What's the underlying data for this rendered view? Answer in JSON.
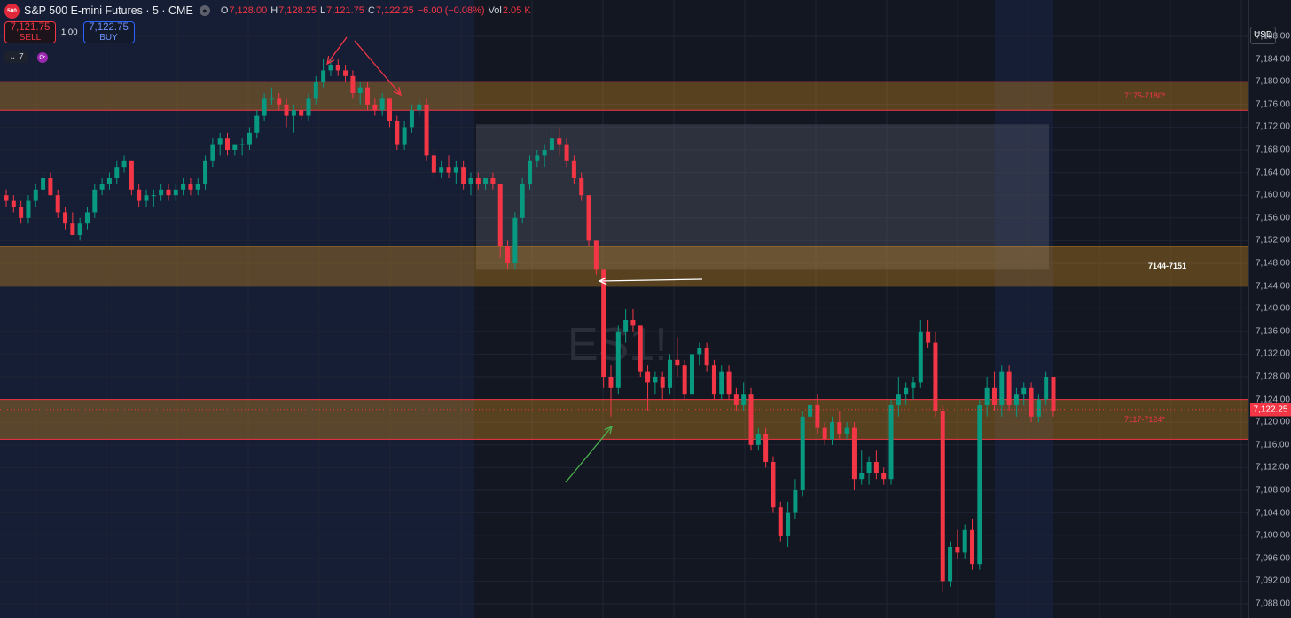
{
  "header": {
    "logo_text": "500",
    "title": "S&P 500 E-mini Futures · 5 · CME",
    "eye_icon": "eye-icon",
    "o_label": "O",
    "o_value": "7,128.00",
    "h_label": "H",
    "h_value": "7,128.25",
    "l_label": "L",
    "l_value": "7,121.75",
    "c_label": "C",
    "c_value": "7,122.25",
    "change": "−6.00 (−0.08%)",
    "vol_label": "Vol",
    "vol_value": "2.05 K"
  },
  "trade": {
    "sell_price": "7,121.75",
    "sell_label": "SELL",
    "qty": "1.00",
    "buy_price": "7,122.75",
    "buy_label": "BUY"
  },
  "indicators": {
    "bars_count": "7",
    "sync_icon": "sync-icon"
  },
  "axis": {
    "currency": "USD",
    "current_price": "7,122.25",
    "ticks": [
      "7,188.00",
      "7,184.00",
      "7,180.00",
      "7,176.00",
      "7,172.00",
      "7,168.00",
      "7,164.00",
      "7,160.00",
      "7,156.00",
      "7,152.00",
      "7,148.00",
      "7,144.00",
      "7,140.00",
      "7,136.00",
      "7,132.00",
      "7,128.00",
      "7,124.00",
      "7,120.00",
      "7,116.00",
      "7,112.00",
      "7,108.00",
      "7,104.00",
      "7,100.00",
      "7,096.00",
      "7,092.00",
      "7,088.00"
    ]
  },
  "zones": [
    {
      "label": "7175-7180*",
      "low": 7175,
      "high": 7180
    },
    {
      "label": "7144-7151",
      "low": 7144,
      "high": 7151
    },
    {
      "label": "7117-7124*",
      "low": 7117,
      "high": 7124
    }
  ],
  "watermark": "ES1!",
  "colors": {
    "up": "#089981",
    "down": "#f23645",
    "zone": "#f7a21b",
    "background": "#131722",
    "session": "#1a2447"
  },
  "chart_data": {
    "type": "candlestick",
    "ylim": [
      7084,
      7190
    ],
    "candles": [
      [
        7160,
        7161,
        7158,
        7159
      ],
      [
        7159,
        7160,
        7157,
        7158
      ],
      [
        7158,
        7159,
        7155,
        7156
      ],
      [
        7156,
        7160,
        7155,
        7159
      ],
      [
        7159,
        7162,
        7158,
        7161
      ],
      [
        7161,
        7164,
        7160,
        7163
      ],
      [
        7163,
        7164,
        7160,
        7160
      ],
      [
        7160,
        7161,
        7156,
        7157
      ],
      [
        7157,
        7158,
        7154,
        7155
      ],
      [
        7155,
        7157,
        7153,
        7153
      ],
      [
        7153,
        7156,
        7152,
        7155
      ],
      [
        7155,
        7158,
        7154,
        7157
      ],
      [
        7157,
        7162,
        7156,
        7161
      ],
      [
        7161,
        7163,
        7160,
        7162
      ],
      [
        7162,
        7164,
        7161,
        7163
      ],
      [
        7163,
        7166,
        7162,
        7165
      ],
      [
        7165,
        7167,
        7164,
        7166
      ],
      [
        7166,
        7166,
        7160,
        7161
      ],
      [
        7161,
        7162,
        7158,
        7159
      ],
      [
        7159,
        7161,
        7158,
        7160
      ],
      [
        7160,
        7161,
        7158,
        7160
      ],
      [
        7160,
        7162,
        7159,
        7161
      ],
      [
        7161,
        7162,
        7159,
        7160
      ],
      [
        7160,
        7162,
        7159,
        7161
      ],
      [
        7161,
        7163,
        7160,
        7162
      ],
      [
        7162,
        7163,
        7160,
        7161
      ],
      [
        7161,
        7163,
        7160,
        7162
      ],
      [
        7162,
        7167,
        7161,
        7166
      ],
      [
        7166,
        7170,
        7165,
        7169
      ],
      [
        7169,
        7171,
        7167,
        7170
      ],
      [
        7170,
        7171,
        7167,
        7168
      ],
      [
        7168,
        7169,
        7167,
        7169
      ],
      [
        7169,
        7170,
        7167,
        7169
      ],
      [
        7169,
        7172,
        7168,
        7171
      ],
      [
        7171,
        7175,
        7170,
        7174
      ],
      [
        7174,
        7178,
        7173,
        7177
      ],
      [
        7177,
        7179,
        7176,
        7177
      ],
      [
        7177,
        7178,
        7175,
        7176
      ],
      [
        7176,
        7177,
        7172,
        7174
      ],
      [
        7174,
        7176,
        7171,
        7175
      ],
      [
        7175,
        7176,
        7173,
        7174
      ],
      [
        7174,
        7178,
        7173,
        7177
      ],
      [
        7177,
        7181,
        7176,
        7180
      ],
      [
        7180,
        7184,
        7179,
        7182
      ],
      [
        7182,
        7184,
        7181,
        7183
      ],
      [
        7183,
        7184,
        7181,
        7182
      ],
      [
        7182,
        7183,
        7180,
        7181
      ],
      [
        7181,
        7182,
        7177,
        7178
      ],
      [
        7178,
        7180,
        7176,
        7179
      ],
      [
        7179,
        7180,
        7175,
        7176
      ],
      [
        7176,
        7177,
        7174,
        7175
      ],
      [
        7175,
        7178,
        7174,
        7177
      ],
      [
        7177,
        7177,
        7172,
        7173
      ],
      [
        7173,
        7174,
        7168,
        7169
      ],
      [
        7169,
        7173,
        7168,
        7172
      ],
      [
        7172,
        7176,
        7171,
        7175
      ],
      [
        7175,
        7177,
        7174,
        7176
      ],
      [
        7176,
        7177,
        7166,
        7167
      ],
      [
        7167,
        7168,
        7163,
        7164
      ],
      [
        7164,
        7166,
        7163,
        7165
      ],
      [
        7165,
        7167,
        7163,
        7164
      ],
      [
        7164,
        7166,
        7162,
        7165
      ],
      [
        7165,
        7166,
        7161,
        7162
      ],
      [
        7162,
        7164,
        7160,
        7163
      ],
      [
        7163,
        7164,
        7161,
        7162
      ],
      [
        7162,
        7163,
        7161,
        7163
      ],
      [
        7163,
        7164,
        7161,
        7162
      ],
      [
        7162,
        7162,
        7149,
        7151
      ],
      [
        7151,
        7152,
        7147,
        7148
      ],
      [
        7148,
        7157,
        7147,
        7156
      ],
      [
        7156,
        7163,
        7155,
        7162
      ],
      [
        7162,
        7167,
        7161,
        7166
      ],
      [
        7166,
        7168,
        7165,
        7167
      ],
      [
        7167,
        7169,
        7165,
        7168
      ],
      [
        7168,
        7172,
        7167,
        7170
      ],
      [
        7170,
        7172,
        7167,
        7169
      ],
      [
        7169,
        7170,
        7165,
        7166
      ],
      [
        7166,
        7167,
        7162,
        7163
      ],
      [
        7163,
        7164,
        7159,
        7160
      ],
      [
        7160,
        7160,
        7151,
        7152
      ],
      [
        7152,
        7152,
        7146,
        7147
      ],
      [
        7147,
        7147,
        7126,
        7128
      ],
      [
        7128,
        7130,
        7121,
        7126
      ],
      [
        7126,
        7137,
        7125,
        7136
      ],
      [
        7136,
        7140,
        7134,
        7138
      ],
      [
        7138,
        7140,
        7136,
        7137
      ],
      [
        7137,
        7137,
        7128,
        7129
      ],
      [
        7129,
        7130,
        7122,
        7127
      ],
      [
        7127,
        7129,
        7125,
        7128
      ],
      [
        7128,
        7129,
        7124,
        7126
      ],
      [
        7126,
        7132,
        7125,
        7131
      ],
      [
        7131,
        7135,
        7128,
        7130
      ],
      [
        7130,
        7131,
        7124,
        7125
      ],
      [
        7125,
        7133,
        7124,
        7132
      ],
      [
        7132,
        7134,
        7130,
        7133
      ],
      [
        7133,
        7134,
        7129,
        7130
      ],
      [
        7130,
        7131,
        7124,
        7125
      ],
      [
        7125,
        7130,
        7124,
        7129
      ],
      [
        7129,
        7130,
        7124,
        7125
      ],
      [
        7125,
        7126,
        7122,
        7123
      ],
      [
        7123,
        7127,
        7122,
        7125
      ],
      [
        7125,
        7126,
        7115,
        7116
      ],
      [
        7116,
        7119,
        7115,
        7118
      ],
      [
        7118,
        7119,
        7112,
        7113
      ],
      [
        7113,
        7114,
        7104,
        7105
      ],
      [
        7105,
        7106,
        7099,
        7100
      ],
      [
        7100,
        7106,
        7098,
        7104
      ],
      [
        7104,
        7110,
        7103,
        7108
      ],
      [
        7108,
        7122,
        7107,
        7121
      ],
      [
        7121,
        7125,
        7120,
        7123
      ],
      [
        7123,
        7125,
        7118,
        7119
      ],
      [
        7119,
        7120,
        7116,
        7117
      ],
      [
        7117,
        7121,
        7116,
        7120
      ],
      [
        7120,
        7122,
        7117,
        7118
      ],
      [
        7118,
        7120,
        7117,
        7119
      ],
      [
        7119,
        7120,
        7108,
        7110
      ],
      [
        7110,
        7115,
        7109,
        7111
      ],
      [
        7111,
        7114,
        7109,
        7113
      ],
      [
        7113,
        7115,
        7110,
        7111
      ],
      [
        7111,
        7112,
        7109,
        7110
      ],
      [
        7110,
        7124,
        7109,
        7123
      ],
      [
        7123,
        7128,
        7121,
        7125
      ],
      [
        7125,
        7127,
        7123,
        7126
      ],
      [
        7126,
        7128,
        7124,
        7127
      ],
      [
        7127,
        7138,
        7126,
        7136
      ],
      [
        7136,
        7138,
        7133,
        7134
      ],
      [
        7134,
        7136,
        7121,
        7122
      ],
      [
        7122,
        7123,
        7090,
        7092
      ],
      [
        7092,
        7099,
        7091,
        7098
      ],
      [
        7098,
        7101,
        7096,
        7097
      ],
      [
        7097,
        7102,
        7096,
        7101
      ],
      [
        7101,
        7103,
        7094,
        7095
      ],
      [
        7095,
        7124,
        7094,
        7123
      ],
      [
        7123,
        7128,
        7121,
        7126
      ],
      [
        7126,
        7129,
        7122,
        7123
      ],
      [
        7123,
        7130,
        7121,
        7129
      ],
      [
        7129,
        7130,
        7122,
        7123
      ],
      [
        7123,
        7126,
        7121,
        7125
      ],
      [
        7125,
        7127,
        7123,
        7126
      ],
      [
        7126,
        7127,
        7120,
        7121
      ],
      [
        7121,
        7125,
        7120,
        7124
      ],
      [
        7124,
        7129,
        7123,
        7128
      ],
      [
        7128,
        7128,
        7121,
        7122
      ]
    ]
  }
}
